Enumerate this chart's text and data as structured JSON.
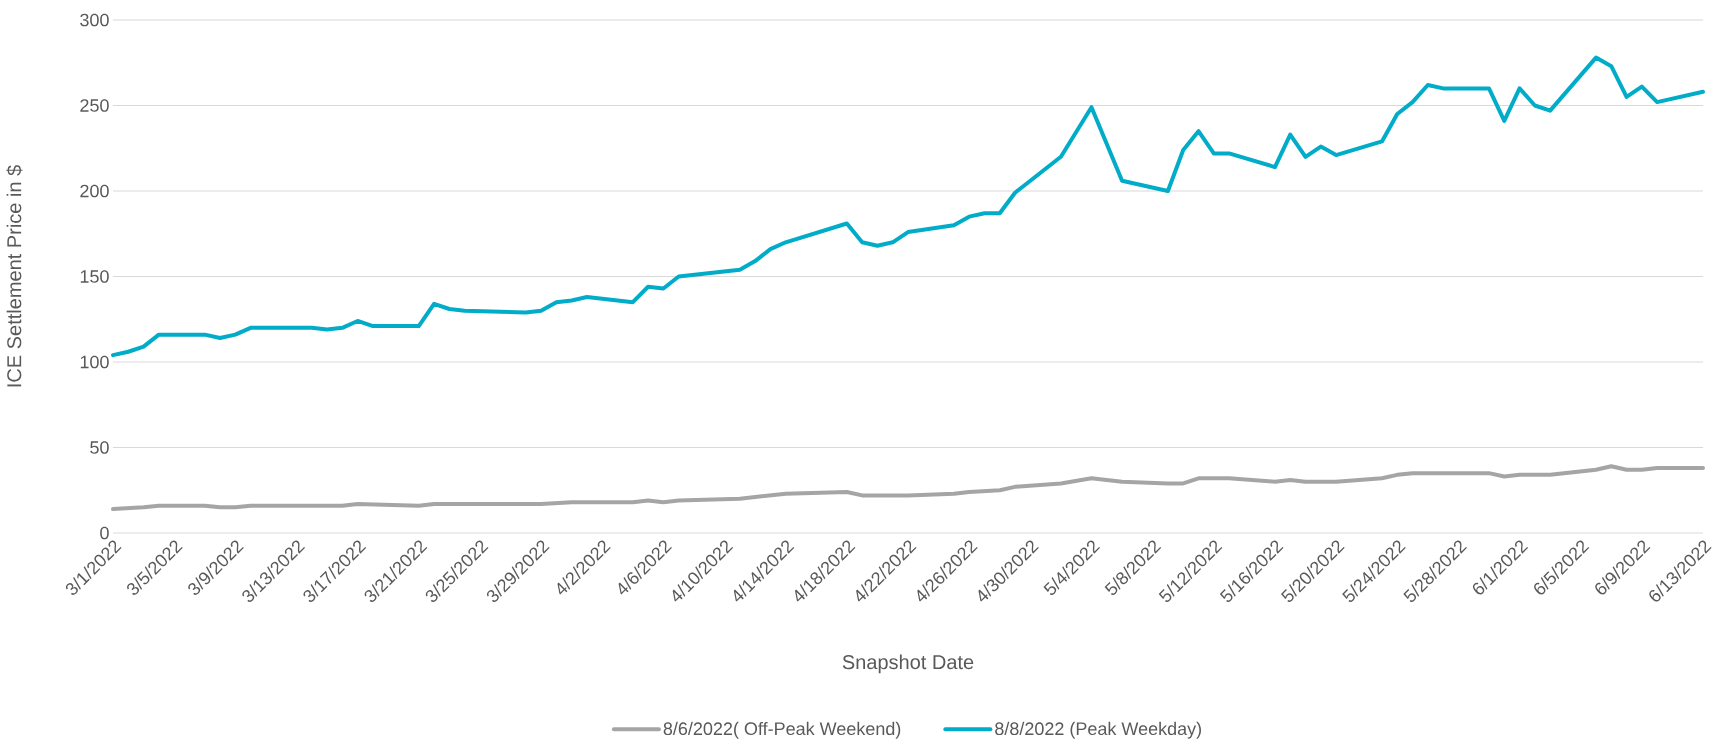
{
  "chart_data": {
    "type": "line",
    "xlabel": "Snapshot Date",
    "ylabel": "ICE Settlement Price in $",
    "grid": "y",
    "legend": "bottom",
    "line_style": "solid",
    "ylim": [
      0,
      300
    ],
    "yticks": [
      0,
      50,
      100,
      150,
      200,
      250,
      300
    ],
    "xlim": [
      "2022-03-01",
      "2022-06-13"
    ],
    "xticks": [
      {
        "value": "2022-03-01",
        "label": "3/1/2022"
      },
      {
        "value": "2022-03-05",
        "label": "3/5/2022"
      },
      {
        "value": "2022-03-09",
        "label": "3/9/2022"
      },
      {
        "value": "2022-03-13",
        "label": "3/13/2022"
      },
      {
        "value": "2022-03-17",
        "label": "3/17/2022"
      },
      {
        "value": "2022-03-21",
        "label": "3/21/2022"
      },
      {
        "value": "2022-03-25",
        "label": "3/25/2022"
      },
      {
        "value": "2022-03-29",
        "label": "3/29/2022"
      },
      {
        "value": "2022-04-02",
        "label": "4/2/2022"
      },
      {
        "value": "2022-04-06",
        "label": "4/6/2022"
      },
      {
        "value": "2022-04-10",
        "label": "4/10/2022"
      },
      {
        "value": "2022-04-14",
        "label": "4/14/2022"
      },
      {
        "value": "2022-04-18",
        "label": "4/18/2022"
      },
      {
        "value": "2022-04-22",
        "label": "4/22/2022"
      },
      {
        "value": "2022-04-26",
        "label": "4/26/2022"
      },
      {
        "value": "2022-04-30",
        "label": "4/30/2022"
      },
      {
        "value": "2022-05-04",
        "label": "5/4/2022"
      },
      {
        "value": "2022-05-08",
        "label": "5/8/2022"
      },
      {
        "value": "2022-05-12",
        "label": "5/12/2022"
      },
      {
        "value": "2022-05-16",
        "label": "5/16/2022"
      },
      {
        "value": "2022-05-20",
        "label": "5/20/2022"
      },
      {
        "value": "2022-05-24",
        "label": "5/24/2022"
      },
      {
        "value": "2022-05-28",
        "label": "5/28/2022"
      },
      {
        "value": "2022-06-01",
        "label": "6/1/2022"
      },
      {
        "value": "2022-06-05",
        "label": "6/5/2022"
      },
      {
        "value": "2022-06-09",
        "label": "6/9/2022"
      },
      {
        "value": "2022-06-13",
        "label": "6/13/2022"
      }
    ],
    "series": [
      {
        "name": "8/6/2022( Off-Peak Weekend)",
        "color": "#a5a5a5",
        "x": [
          "2022-03-01",
          "2022-03-03",
          "2022-03-04",
          "2022-03-07",
          "2022-03-08",
          "2022-03-09",
          "2022-03-10",
          "2022-03-16",
          "2022-03-17",
          "2022-03-21",
          "2022-03-22",
          "2022-03-29",
          "2022-03-31",
          "2022-04-04",
          "2022-04-05",
          "2022-04-06",
          "2022-04-07",
          "2022-04-11",
          "2022-04-13",
          "2022-04-14",
          "2022-04-18",
          "2022-04-19",
          "2022-04-20",
          "2022-04-22",
          "2022-04-25",
          "2022-04-26",
          "2022-04-28",
          "2022-04-29",
          "2022-05-02",
          "2022-05-04",
          "2022-05-06",
          "2022-05-09",
          "2022-05-10",
          "2022-05-11",
          "2022-05-13",
          "2022-05-16",
          "2022-05-17",
          "2022-05-18",
          "2022-05-20",
          "2022-05-23",
          "2022-05-24",
          "2022-05-25",
          "2022-05-27",
          "2022-05-30",
          "2022-05-31",
          "2022-06-01",
          "2022-06-03",
          "2022-06-06",
          "2022-06-07",
          "2022-06-08",
          "2022-06-09",
          "2022-06-10",
          "2022-06-13"
        ],
        "values": [
          14,
          15,
          16,
          16,
          15,
          15,
          16,
          16,
          17,
          16,
          17,
          17,
          18,
          18,
          19,
          18,
          19,
          20,
          22,
          23,
          24,
          22,
          22,
          22,
          23,
          24,
          25,
          27,
          29,
          32,
          30,
          29,
          29,
          32,
          32,
          30,
          31,
          30,
          30,
          32,
          34,
          35,
          35,
          35,
          33,
          34,
          34,
          37,
          39,
          37,
          37,
          38,
          38
        ]
      },
      {
        "name": "8/8/2022 (Peak Weekday)",
        "color": "#00acc8",
        "x": [
          "2022-03-01",
          "2022-03-02",
          "2022-03-03",
          "2022-03-04",
          "2022-03-07",
          "2022-03-08",
          "2022-03-09",
          "2022-03-10",
          "2022-03-11",
          "2022-03-14",
          "2022-03-15",
          "2022-03-16",
          "2022-03-17",
          "2022-03-18",
          "2022-03-21",
          "2022-03-22",
          "2022-03-23",
          "2022-03-24",
          "2022-03-28",
          "2022-03-29",
          "2022-03-30",
          "2022-03-31",
          "2022-04-01",
          "2022-04-04",
          "2022-04-05",
          "2022-04-06",
          "2022-04-07",
          "2022-04-11",
          "2022-04-12",
          "2022-04-13",
          "2022-04-14",
          "2022-04-18",
          "2022-04-19",
          "2022-04-20",
          "2022-04-21",
          "2022-04-22",
          "2022-04-25",
          "2022-04-26",
          "2022-04-27",
          "2022-04-28",
          "2022-04-29",
          "2022-05-02",
          "2022-05-04",
          "2022-05-06",
          "2022-05-09",
          "2022-05-10",
          "2022-05-11",
          "2022-05-12",
          "2022-05-13",
          "2022-05-16",
          "2022-05-17",
          "2022-05-18",
          "2022-05-19",
          "2022-05-20",
          "2022-05-23",
          "2022-05-24",
          "2022-05-25",
          "2022-05-26",
          "2022-05-27",
          "2022-05-30",
          "2022-05-31",
          "2022-06-01",
          "2022-06-02",
          "2022-06-03",
          "2022-06-06",
          "2022-06-07",
          "2022-06-08",
          "2022-06-09",
          "2022-06-10",
          "2022-06-13"
        ],
        "values": [
          104,
          106,
          109,
          116,
          116,
          114,
          116,
          120,
          120,
          120,
          119,
          120,
          124,
          121,
          121,
          134,
          131,
          130,
          129,
          130,
          135,
          136,
          138,
          135,
          144,
          143,
          150,
          154,
          159,
          166,
          170,
          181,
          170,
          168,
          170,
          176,
          180,
          185,
          187,
          187,
          199,
          220,
          249,
          206,
          200,
          224,
          235,
          222,
          222,
          214,
          233,
          220,
          226,
          221,
          229,
          245,
          252,
          262,
          260,
          260,
          241,
          260,
          250,
          247,
          278,
          273,
          255,
          261,
          252,
          258
        ]
      }
    ]
  }
}
